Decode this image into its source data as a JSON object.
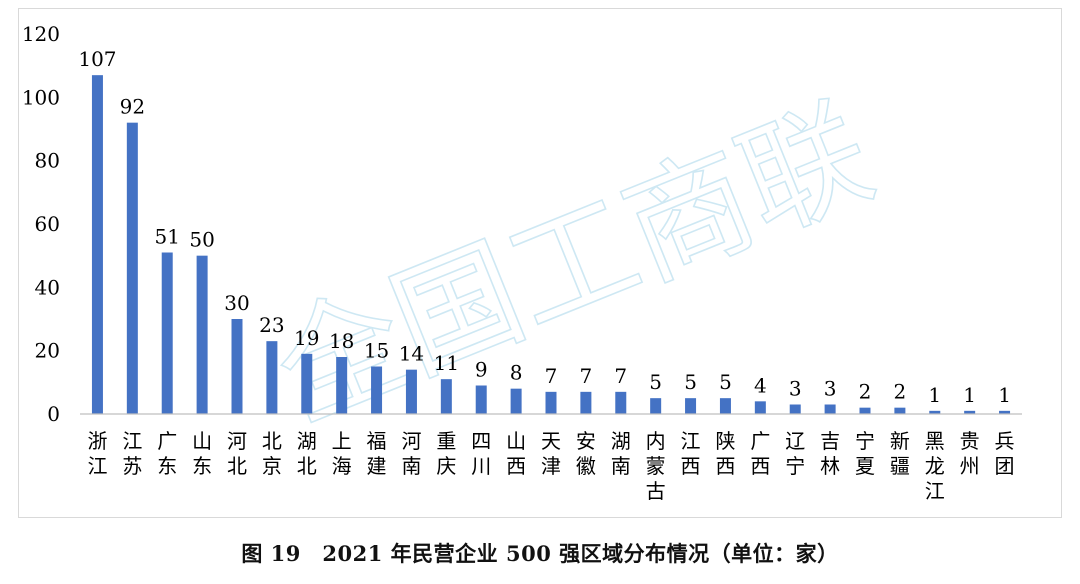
{
  "caption": "图 19　2021 年民营企业 500 强区域分布情况（单位：家）",
  "watermark": "全国工商联",
  "colors": {
    "bar": "#4472c4",
    "axis": "#bfbfbf"
  },
  "chart_data": {
    "type": "bar",
    "title": "",
    "xlabel": "",
    "ylabel": "",
    "ylim": [
      0,
      120
    ],
    "yticks": [
      0,
      20,
      40,
      60,
      80,
      100,
      120
    ],
    "grid": false,
    "categories": [
      "浙江",
      "江苏",
      "广东",
      "山东",
      "河北",
      "北京",
      "湖北",
      "上海",
      "福建",
      "河南",
      "重庆",
      "四川",
      "山西",
      "天津",
      "安徽",
      "湖南",
      "内蒙古",
      "江西",
      "陕西",
      "广西",
      "辽宁",
      "吉林",
      "宁夏",
      "新疆",
      "黑龙江",
      "贵州",
      "兵团"
    ],
    "values": [
      107,
      92,
      51,
      50,
      30,
      23,
      19,
      18,
      15,
      14,
      11,
      9,
      8,
      7,
      7,
      7,
      5,
      5,
      5,
      4,
      3,
      3,
      2,
      2,
      1,
      1,
      1
    ]
  }
}
